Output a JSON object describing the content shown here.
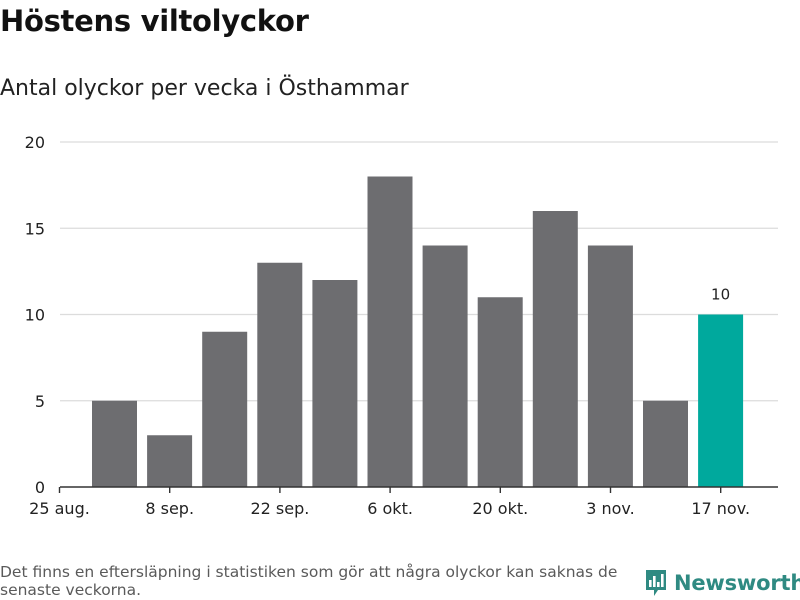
{
  "title": "Höstens viltolyckor",
  "subtitle": "Antal olyckor per vecka i Östhammar",
  "footnote": "Det finns en eftersläpning i statistiken som gör att några olyckor kan saknas de senaste veckorna.",
  "brand": {
    "name": "Newsworthy",
    "icon": "newsworthy-logo-icon",
    "color": "#2f8a82"
  },
  "colors": {
    "bar": "#6d6d70",
    "highlight": "#00a99d",
    "grid": "#dcdcdc",
    "axis": "#333333"
  },
  "chart_data": {
    "type": "bar",
    "title": "Antal olyckor per vecka i Östhammar",
    "xlabel": "",
    "ylabel": "",
    "ylim": [
      0,
      20
    ],
    "y_ticks": [
      0,
      5,
      10,
      15,
      20
    ],
    "x_tick_labels": [
      "25 aug.",
      "8 sep.",
      "22 sep.",
      "6 okt.",
      "20 okt.",
      "3 nov.",
      "17 nov."
    ],
    "values": [
      5,
      3,
      9,
      13,
      12,
      18,
      14,
      11,
      16,
      14,
      5,
      10
    ],
    "highlight_index": 11,
    "data_labels": [
      {
        "index": 11,
        "text": "10"
      }
    ],
    "grid": true
  }
}
